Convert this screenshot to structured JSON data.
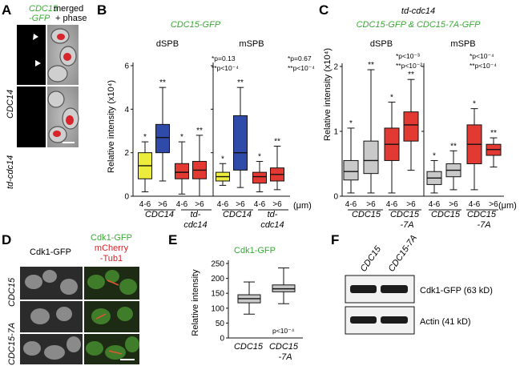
{
  "colors": {
    "accent_green": "#3aa935",
    "accent_red": "#d8242b",
    "box_yellow": "#ecec3c",
    "box_blue": "#2f4aa8",
    "box_red": "#e23a32",
    "box_gray": "#c9c9c9"
  },
  "panels": {
    "A": {
      "letter": "A",
      "header_green_1": "CDC15",
      "header_green_2": "-GFP",
      "header_black_1": "merged",
      "header_black_2": "+ phase",
      "row1_label": "CDC14",
      "row2_label": "td-cdc14"
    },
    "B": {
      "letter": "B",
      "title": "CDC15-GFP",
      "sub_left": "dSPB",
      "sub_right": "mSPB",
      "ylabel": "Relative intensity (x10⁴)",
      "stats_left_1": "*p=0.13",
      "stats_left_2": "**p<10⁻⁴",
      "stats_right_1": "*p=0.67",
      "stats_right_2": "**p<10⁻⁴",
      "unit": "(μm)",
      "group_labels": [
        "CDC14",
        "td-",
        "cdc14",
        "CDC14",
        "td-",
        "cdc14"
      ]
    },
    "C": {
      "letter": "C",
      "title_1": "td-cdc14",
      "title_2": "CDC15-GFP & CDC15-7A-GFP",
      "sub_left": "dSPB",
      "sub_right": "mSPB",
      "ylabel": "Relative intensity (x10⁴)",
      "stats_left_1": "*p<10⁻³",
      "stats_left_2": "**p<10⁻²",
      "stats_right_1": "*p<10⁻⁴",
      "stats_right_2": "**p<10⁻⁴",
      "unit": "(μm)",
      "group_labels": [
        "CDC15",
        "CDC15",
        "-7A",
        "CDC15",
        "CDC15",
        "-7A"
      ]
    },
    "D": {
      "letter": "D",
      "col1_header": "Cdk1-GFP",
      "col2_header_1": "Cdk1-GFP",
      "col2_header_2": "mCherry",
      "col2_header_3": "-Tub1",
      "row_labels": [
        "CDC15",
        "CDC15-7A"
      ]
    },
    "E": {
      "letter": "E",
      "title": "Cdk1-GFP",
      "ylabel": "Relative intensity",
      "pvalue": "p<10⁻⁴",
      "cat_1": "CDC15",
      "cat_2_1": "CDC15",
      "cat_2_2": "-7A"
    },
    "F": {
      "letter": "F",
      "lanes": [
        "CDC15",
        "CDC15-7A"
      ],
      "band_1": "Cdk1-GFP (63 kD)",
      "band_2": "Actin (41 kD)"
    }
  },
  "chart_data": [
    {
      "panel": "B",
      "type": "box",
      "title": "CDC15-GFP",
      "ylabel": "Relative intensity (x10⁴)",
      "ylim": [
        0,
        6
      ],
      "yticks": [
        0,
        2,
        4,
        6
      ],
      "x_tick_labels": [
        "4-6",
        ">6",
        "4-6",
        ">6",
        "4-6",
        ">6",
        "4-6",
        ">6"
      ],
      "boxes": [
        {
          "group": "dSPB",
          "strain": "CDC14",
          "size": "4-6",
          "color": "yellow",
          "whisker_low": 0.2,
          "q1": 0.8,
          "median": 1.4,
          "q3": 2.0,
          "whisker_high": 2.5,
          "sig": "*"
        },
        {
          "group": "dSPB",
          "strain": "CDC14",
          "size": ">6",
          "color": "blue",
          "whisker_low": 0.7,
          "q1": 2.0,
          "median": 2.7,
          "q3": 3.3,
          "whisker_high": 5.0,
          "sig": "**"
        },
        {
          "group": "dSPB",
          "strain": "td-cdc14",
          "size": "4-6",
          "color": "red",
          "whisker_low": 0.1,
          "q1": 0.8,
          "median": 1.1,
          "q3": 1.5,
          "whisker_high": 2.5,
          "sig": "*"
        },
        {
          "group": "dSPB",
          "strain": "td-cdc14",
          "size": ">6",
          "color": "red",
          "whisker_low": 0.0,
          "q1": 0.8,
          "median": 1.2,
          "q3": 1.6,
          "whisker_high": 2.8,
          "sig": "**"
        },
        {
          "group": "mSPB",
          "strain": "CDC14",
          "size": "4-6",
          "color": "yellow",
          "whisker_low": 0.5,
          "q1": 0.7,
          "median": 0.9,
          "q3": 1.1,
          "whisker_high": 1.5,
          "sig": "*"
        },
        {
          "group": "mSPB",
          "strain": "CDC14",
          "size": ">6",
          "color": "blue",
          "whisker_low": 0.4,
          "q1": 1.2,
          "median": 2.0,
          "q3": 3.7,
          "whisker_high": 5.0,
          "sig": "**"
        },
        {
          "group": "mSPB",
          "strain": "td-cdc14",
          "size": "4-6",
          "color": "red",
          "whisker_low": 0.2,
          "q1": 0.6,
          "median": 0.9,
          "q3": 1.1,
          "whisker_high": 1.6,
          "sig": "*"
        },
        {
          "group": "mSPB",
          "strain": "td-cdc14",
          "size": ">6",
          "color": "red",
          "whisker_low": 0.3,
          "q1": 0.7,
          "median": 1.0,
          "q3": 1.3,
          "whisker_high": 2.3,
          "sig": "**"
        }
      ]
    },
    {
      "panel": "C",
      "type": "box",
      "title": "td-cdc14 CDC15-GFP & CDC15-7A-GFP",
      "ylabel": "Relative intensity (x10⁴)",
      "ylim": [
        0,
        2
      ],
      "yticks": [
        0,
        1,
        2
      ],
      "x_tick_labels": [
        "4-6",
        ">6",
        "4-6",
        ">6",
        "4-6",
        ">6",
        "4-6",
        ">6"
      ],
      "boxes": [
        {
          "group": "dSPB",
          "strain": "CDC15",
          "size": "4-6",
          "color": "gray",
          "whisker_low": 0.05,
          "q1": 0.25,
          "median": 0.38,
          "q3": 0.55,
          "whisker_high": 1.05,
          "sig": "*"
        },
        {
          "group": "dSPB",
          "strain": "CDC15",
          "size": ">6",
          "color": "gray",
          "whisker_low": 0.05,
          "q1": 0.35,
          "median": 0.55,
          "q3": 0.85,
          "whisker_high": 1.95,
          "sig": "**"
        },
        {
          "group": "dSPB",
          "strain": "CDC15-7A",
          "size": "4-6",
          "color": "red",
          "whisker_low": 0.05,
          "q1": 0.55,
          "median": 0.8,
          "q3": 1.05,
          "whisker_high": 1.45,
          "sig": "*"
        },
        {
          "group": "dSPB",
          "strain": "CDC15-7A",
          "size": ">6",
          "color": "red",
          "whisker_low": 0.4,
          "q1": 0.85,
          "median": 1.1,
          "q3": 1.3,
          "whisker_high": 1.8,
          "sig": "**"
        },
        {
          "group": "mSPB",
          "strain": "CDC15",
          "size": "4-6",
          "color": "gray",
          "whisker_low": 0.05,
          "q1": 0.18,
          "median": 0.28,
          "q3": 0.38,
          "whisker_high": 0.55,
          "sig": "*"
        },
        {
          "group": "mSPB",
          "strain": "CDC15",
          "size": ">6",
          "color": "gray",
          "whisker_low": 0.1,
          "q1": 0.3,
          "median": 0.4,
          "q3": 0.5,
          "whisker_high": 0.7,
          "sig": "**"
        },
        {
          "group": "mSPB",
          "strain": "CDC15-7A",
          "size": "4-6",
          "color": "red",
          "whisker_low": 0.1,
          "q1": 0.5,
          "median": 0.8,
          "q3": 1.1,
          "whisker_high": 1.35,
          "sig": "*"
        },
        {
          "group": "mSPB",
          "strain": "CDC15-7A",
          "size": ">6",
          "color": "red",
          "whisker_low": 0.45,
          "q1": 0.63,
          "median": 0.72,
          "q3": 0.8,
          "whisker_high": 0.9,
          "sig": "**"
        }
      ]
    },
    {
      "panel": "E",
      "type": "box",
      "title": "Cdk1-GFP",
      "ylabel": "Relative intensity",
      "ylim": [
        0,
        250
      ],
      "yticks": [
        0,
        50,
        100,
        150,
        200,
        250
      ],
      "boxes": [
        {
          "category": "CDC15",
          "color": "gray",
          "whisker_low": 80,
          "q1": 118,
          "median": 132,
          "q3": 145,
          "whisker_high": 188
        },
        {
          "category": "CDC15-7A",
          "color": "gray",
          "whisker_low": 115,
          "q1": 155,
          "median": 165,
          "q3": 178,
          "whisker_high": 235
        }
      ]
    }
  ]
}
